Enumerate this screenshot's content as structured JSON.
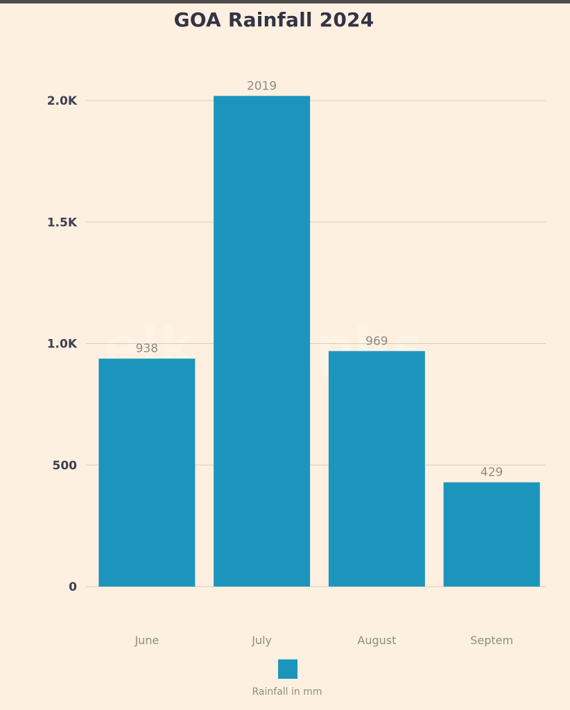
{
  "title": "GOA Rainfall 2024",
  "watermark": "elk graphs",
  "chart_data": {
    "type": "bar",
    "title": "GOA Rainfall 2024",
    "categories": [
      "June",
      "July",
      "August",
      "Septem"
    ],
    "series": [
      {
        "name": "Rainfall in mm",
        "values": [
          938,
          2019,
          969,
          429
        ],
        "color": "#1c95bd"
      }
    ],
    "data_labels": [
      "938",
      "2019",
      "969",
      "429"
    ],
    "ylim": [
      0,
      2000
    ],
    "yticks": [
      0,
      500,
      1000,
      1500,
      2000
    ],
    "ytick_labels": [
      "0",
      "500",
      "1.0K",
      "1.5K",
      "2.0K"
    ],
    "xlabel": "",
    "ylabel": "",
    "grid": true,
    "legend_position": "bottom"
  },
  "colors": {
    "background": "#fdf0e1",
    "bar": "#1c95bd",
    "grid": "#d9cbb8",
    "tick_text": "#3b4050",
    "label_text": "#8f8d82"
  }
}
